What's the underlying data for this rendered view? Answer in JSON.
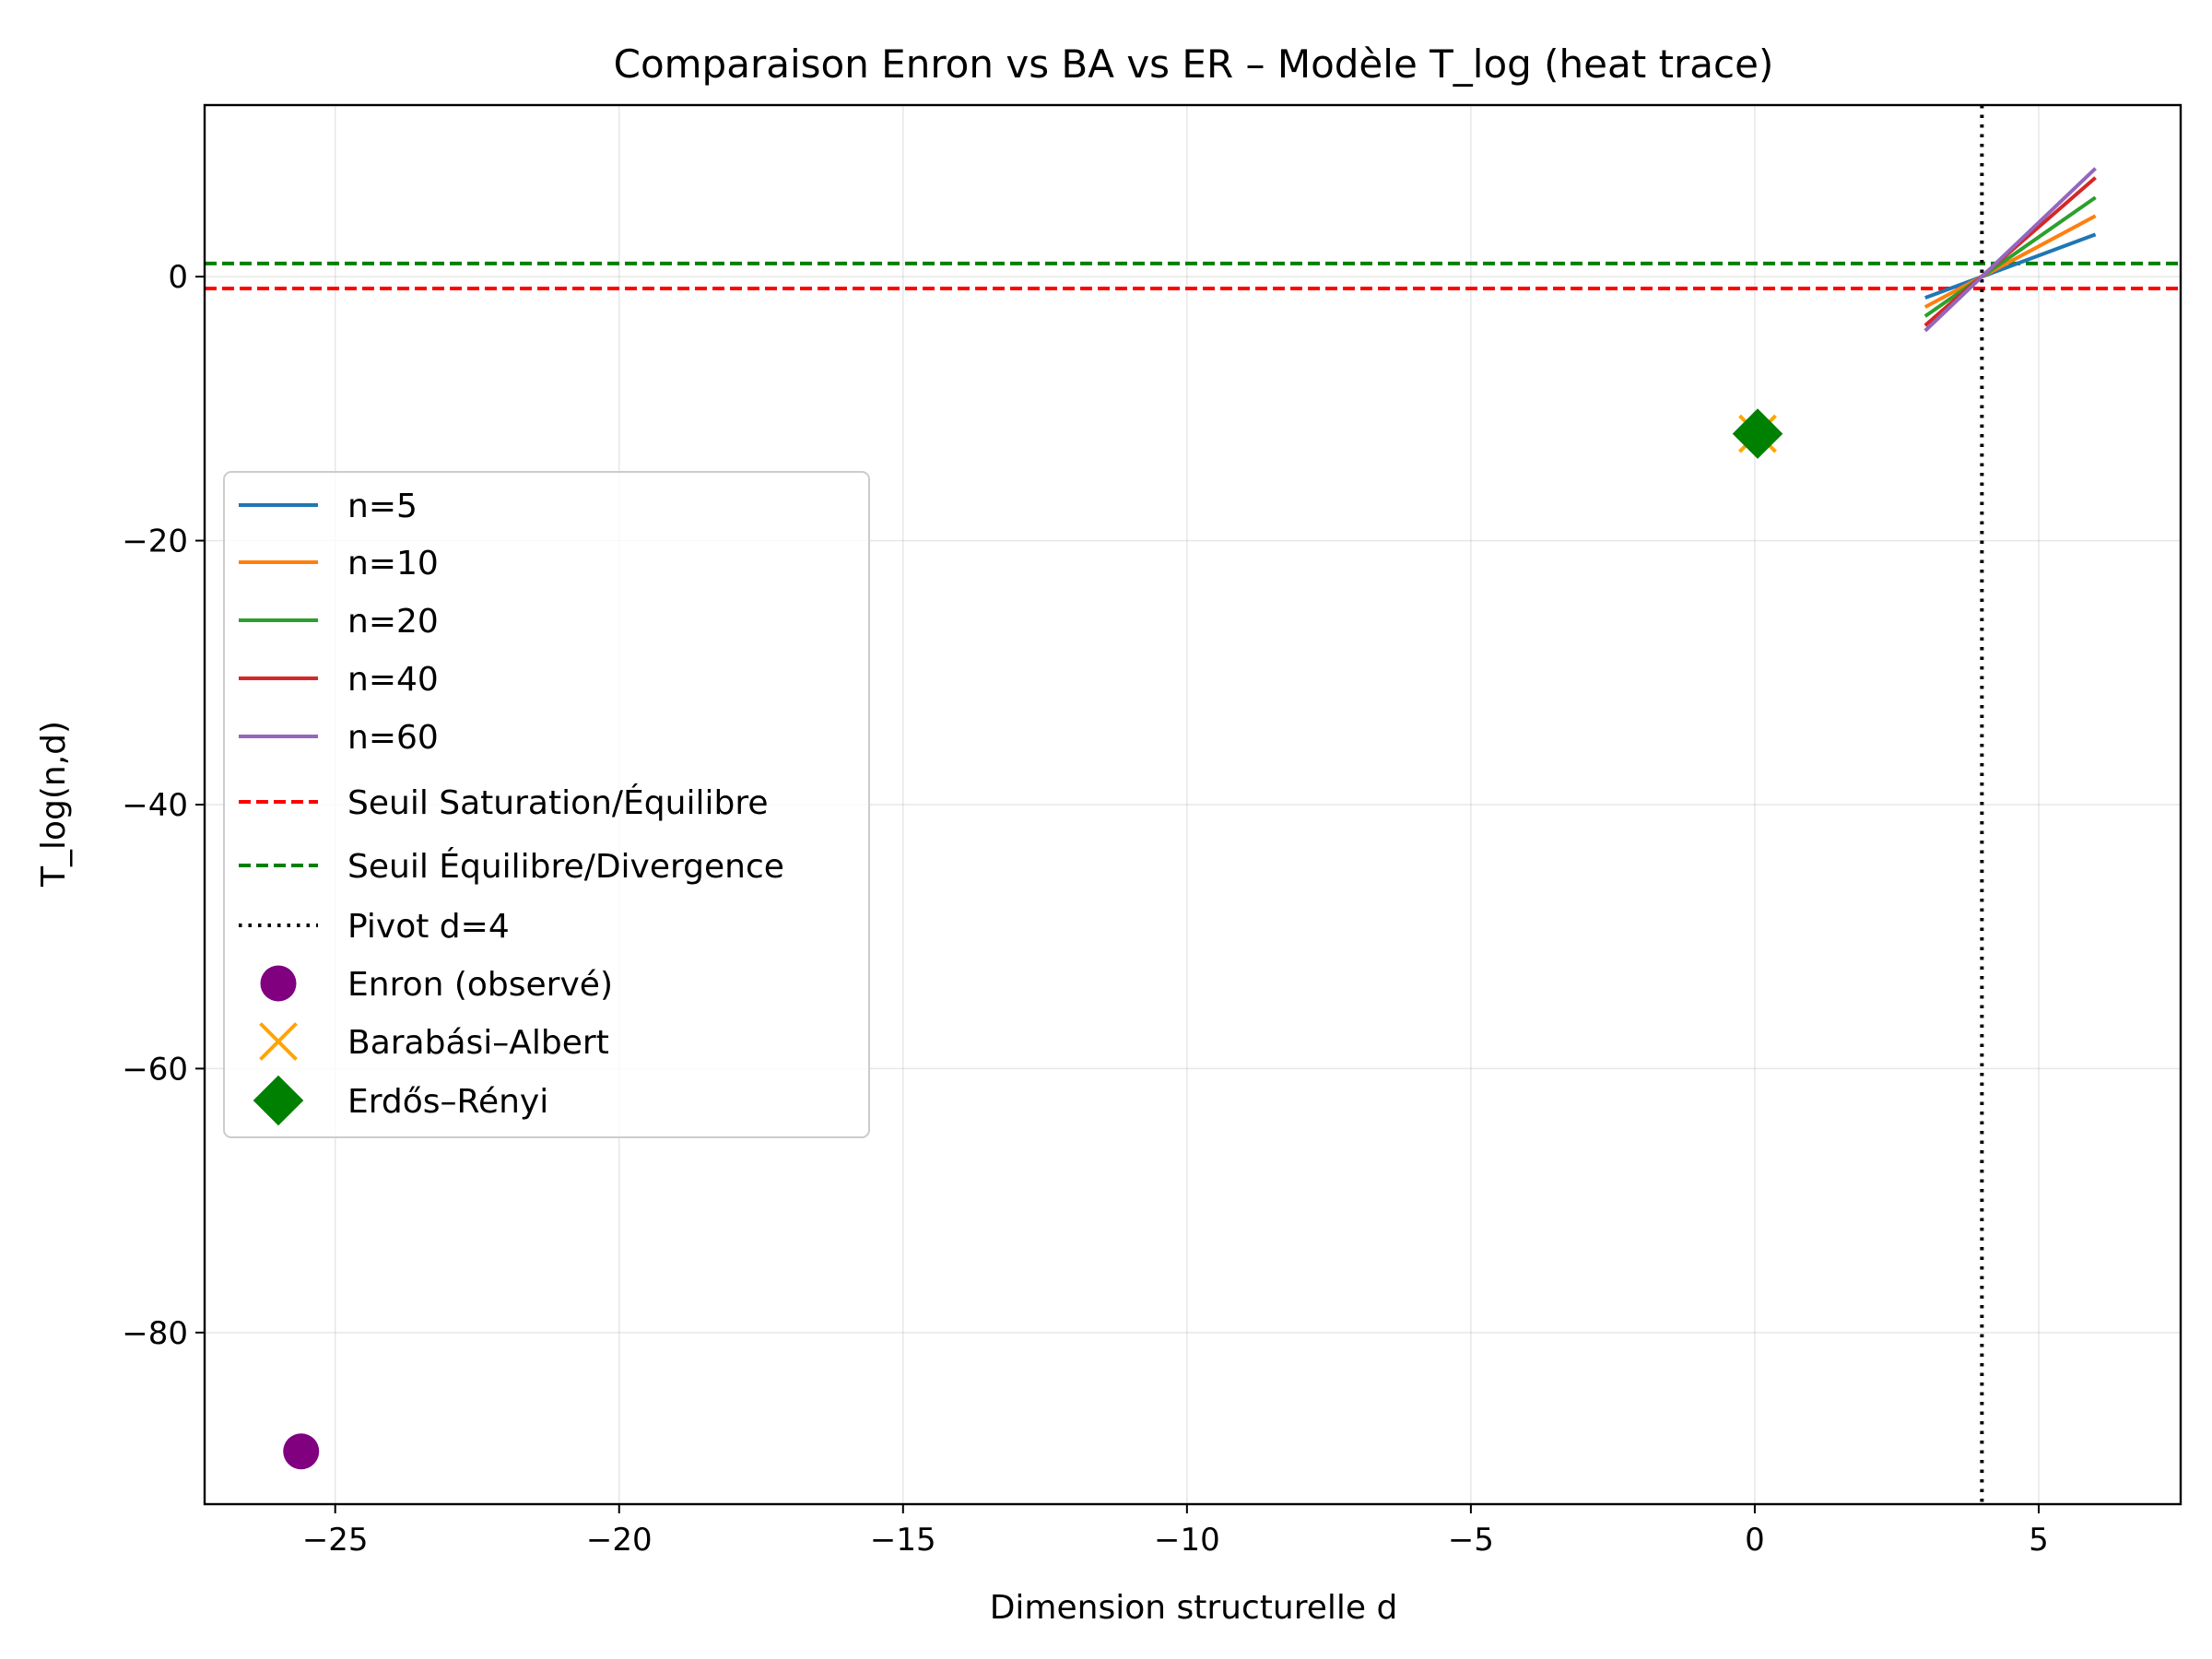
{
  "chart_data": {
    "type": "line",
    "title": "Comparaison Enron vs BA vs ER – Modèle T_log (heat trace)",
    "xlabel": "Dimension structurelle d",
    "ylabel": "T_log(n,d)",
    "xlim": [
      -27.3,
      7.5
    ],
    "ylim": [
      -93.0,
      13.0
    ],
    "xticks": [
      -25,
      -20,
      -15,
      -10,
      -5,
      0,
      5
    ],
    "yticks": [
      0,
      -20,
      -40,
      -60,
      -80
    ],
    "xtick_labels": [
      "−25",
      "−20",
      "−15",
      "−10",
      "−5",
      "0",
      "5"
    ],
    "ytick_labels": [
      "0",
      "−20",
      "−40",
      "−60",
      "−80"
    ],
    "grid": true,
    "legend_position": "center-left",
    "series": [
      {
        "name": "n=5",
        "kind": "line",
        "color": "#1f77b4",
        "x": [
          3,
          6
        ],
        "y": [
          -1.6,
          3.2
        ]
      },
      {
        "name": "n=10",
        "kind": "line",
        "color": "#ff7f0e",
        "x": [
          3,
          6
        ],
        "y": [
          -2.3,
          4.6
        ]
      },
      {
        "name": "n=20",
        "kind": "line",
        "color": "#2ca02c",
        "x": [
          3,
          6
        ],
        "y": [
          -3.0,
          6.0
        ]
      },
      {
        "name": "n=40",
        "kind": "line",
        "color": "#d62728",
        "x": [
          3,
          6
        ],
        "y": [
          -3.7,
          7.5
        ]
      },
      {
        "name": "n=60",
        "kind": "line",
        "color": "#9467bd",
        "x": [
          3,
          6
        ],
        "y": [
          -4.1,
          8.2
        ]
      }
    ],
    "reference_lines": [
      {
        "name": "Seuil Saturation/Équilibre",
        "orientation": "horizontal",
        "value": -0.9,
        "color": "#ff0000",
        "style": "dashed"
      },
      {
        "name": "Seuil Équilibre/Divergence",
        "orientation": "horizontal",
        "value": 1.0,
        "color": "#008000",
        "style": "dashed"
      },
      {
        "name": "Pivot d=4",
        "orientation": "vertical",
        "value": 4,
        "color": "#000000",
        "style": "dotted"
      }
    ],
    "points": [
      {
        "name": "Enron (observé)",
        "marker": "circle",
        "color": "#800080",
        "x": -25.6,
        "y": -89.0
      },
      {
        "name": "Barabási–Albert",
        "marker": "x",
        "color": "#ffa500",
        "x": 0.05,
        "y": -11.9
      },
      {
        "name": "Erdős–Rényi",
        "marker": "diamond",
        "color": "#008000",
        "x": 0.05,
        "y": -11.9
      }
    ],
    "legend": [
      "n=5",
      "n=10",
      "n=20",
      "n=40",
      "n=60",
      "Seuil Saturation/Équilibre",
      "Seuil Équilibre/Divergence",
      "Pivot d=4",
      "Enron (observé)",
      "Barabási–Albert",
      "Erdős–Rényi"
    ]
  }
}
